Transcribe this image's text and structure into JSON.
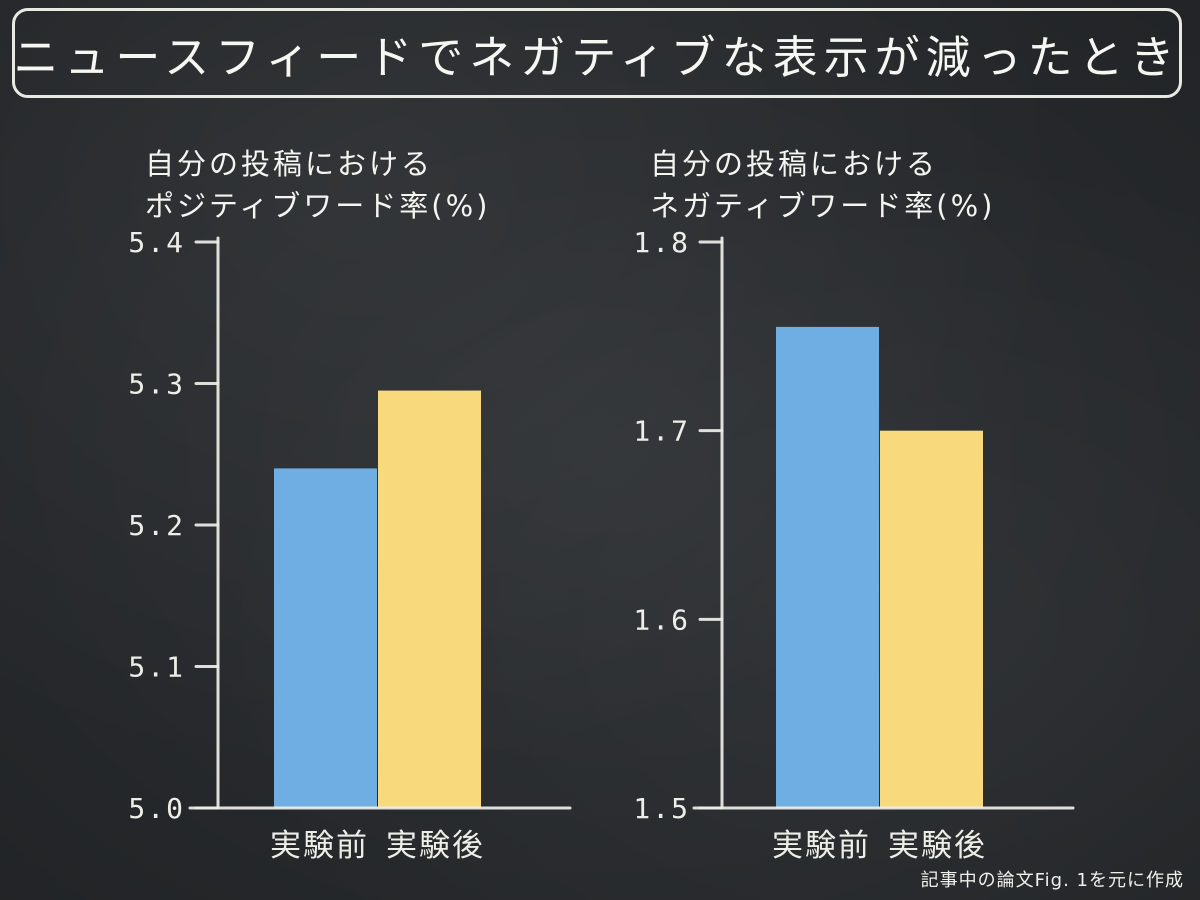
{
  "title": "ニュースフィードでネガティブな表示が減ったとき",
  "footnote": "記事中の論文Fig. 1を元に作成",
  "colors": {
    "before": "#6eaee2",
    "after": "#f8da7c",
    "chalk": "#eeeee9",
    "board": "#2d3033"
  },
  "chart_data": [
    {
      "type": "bar",
      "title": [
        "自分の投稿における",
        "ポジティブワード率(%)"
      ],
      "categories": [
        "実験前",
        "実験後"
      ],
      "values": [
        5.24,
        5.295
      ],
      "ylim": [
        5.0,
        5.4
      ],
      "yticks": [
        5.0,
        5.1,
        5.2,
        5.3,
        5.4
      ],
      "ytick_labels": [
        "5.0",
        "5.1",
        "5.2",
        "5.3",
        "5.4"
      ],
      "xlabel": "実験前 実験後",
      "ylabel": "",
      "grid": false,
      "legend": "none"
    },
    {
      "type": "bar",
      "title": [
        "自分の投稿における",
        "ネガティブワード率(%)"
      ],
      "categories": [
        "実験前",
        "実験後"
      ],
      "values": [
        1.755,
        1.7
      ],
      "ylim": [
        1.5,
        1.8
      ],
      "yticks": [
        1.5,
        1.6,
        1.7,
        1.8
      ],
      "ytick_labels": [
        "1.5",
        "1.6",
        "1.7",
        "1.8"
      ],
      "xlabel": "実験前 実験後",
      "ylabel": "",
      "grid": false,
      "legend": "none"
    }
  ]
}
